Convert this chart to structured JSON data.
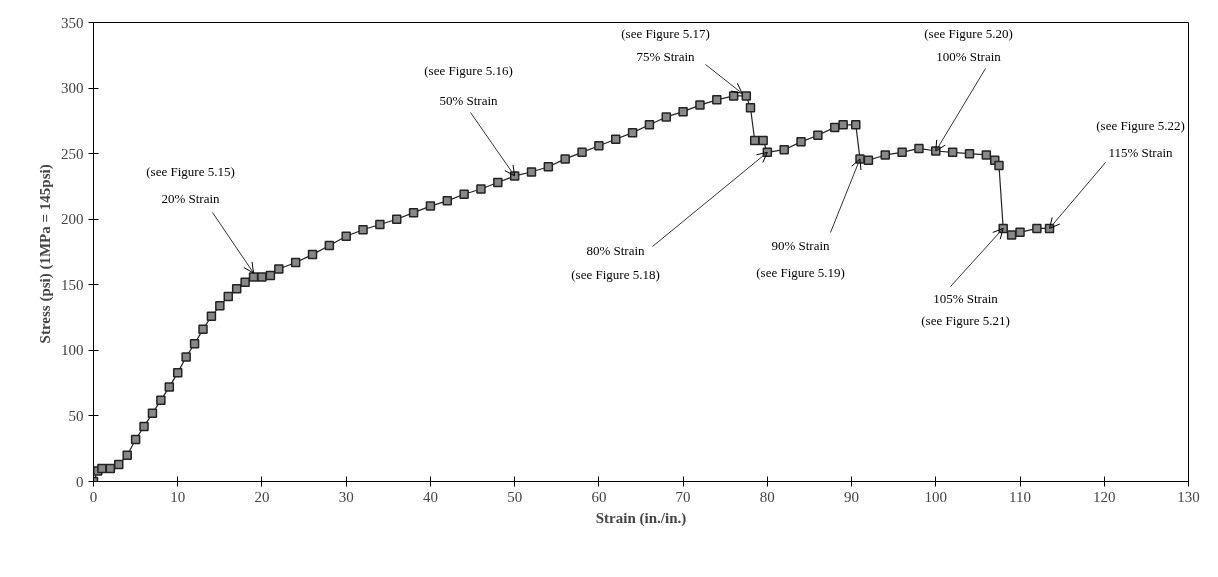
{
  "chart_data": {
    "type": "line",
    "xlabel": "Strain (in./in.)",
    "ylabel": "Stress (psi)  (1MPa = 145psi)",
    "xlim": [
      0,
      130
    ],
    "ylim": [
      0,
      350
    ],
    "xticks": [
      0,
      10,
      20,
      30,
      40,
      50,
      60,
      70,
      80,
      90,
      100,
      110,
      120,
      130
    ],
    "yticks": [
      0,
      50,
      100,
      150,
      200,
      250,
      300,
      350
    ],
    "grid": false,
    "marker": "square",
    "line_style": "solid",
    "x": [
      0,
      0.5,
      1,
      2,
      3,
      4,
      5,
      6,
      7,
      8,
      9,
      10,
      11,
      12,
      13,
      14,
      15,
      16,
      17,
      18,
      19,
      20,
      21,
      22,
      24,
      26,
      28,
      30,
      32,
      34,
      36,
      38,
      40,
      42,
      44,
      46,
      48,
      50,
      52,
      54,
      56,
      58,
      60,
      62,
      64,
      66,
      68,
      70,
      72,
      74,
      76,
      77.5,
      78,
      78.5,
      79.5,
      80,
      82,
      84,
      86,
      88,
      89,
      90.5,
      91,
      92,
      94,
      96,
      98,
      100,
      102,
      104,
      106,
      107,
      107.5,
      108,
      109,
      110,
      112,
      113.5
    ],
    "series": [
      {
        "color": "#222222",
        "values": [
          0,
          8,
          10,
          10,
          13,
          20,
          32,
          42,
          52,
          62,
          72,
          83,
          95,
          105,
          116,
          126,
          134,
          141,
          147,
          152,
          156,
          156,
          157,
          162,
          167,
          173,
          180,
          187,
          192,
          196,
          200,
          205,
          210,
          214,
          219,
          223,
          228,
          233,
          236,
          240,
          246,
          251,
          256,
          261,
          266,
          272,
          278,
          282,
          287,
          291,
          294,
          294,
          285,
          260,
          260,
          251,
          253,
          259,
          264,
          270,
          272,
          272,
          246,
          245,
          249,
          251,
          254,
          252,
          251,
          250,
          249,
          245,
          241,
          193,
          188,
          190,
          193,
          193
        ]
      }
    ],
    "annotations": [
      "(see Figure 5.15)",
      {
        "text": "20% Strain",
        "x": 19,
        "y": 159
      },
      "(see Figure 5.16)",
      {
        "text": "50% Strain",
        "x": 50,
        "y": 233
      },
      "(see Figure 5.17)",
      {
        "text": "75% Strain",
        "x": 77,
        "y": 296
      },
      {
        "text": "80% Strain",
        "x": 80,
        "y": 251
      },
      "(see Figure 5.18)",
      {
        "text": "90% Strain",
        "x": 91,
        "y": 246
      },
      "(see Figure 5.19)",
      "(see Figure 5.20)",
      {
        "text": "100% Strain",
        "x": 100,
        "y": 252
      },
      {
        "text": "105% Strain",
        "x": 108,
        "y": 193
      },
      "(see Figure 5.21)",
      "(see Figure 5.22)",
      {
        "text": "115% Strain",
        "x": 113.5,
        "y": 193
      }
    ]
  }
}
